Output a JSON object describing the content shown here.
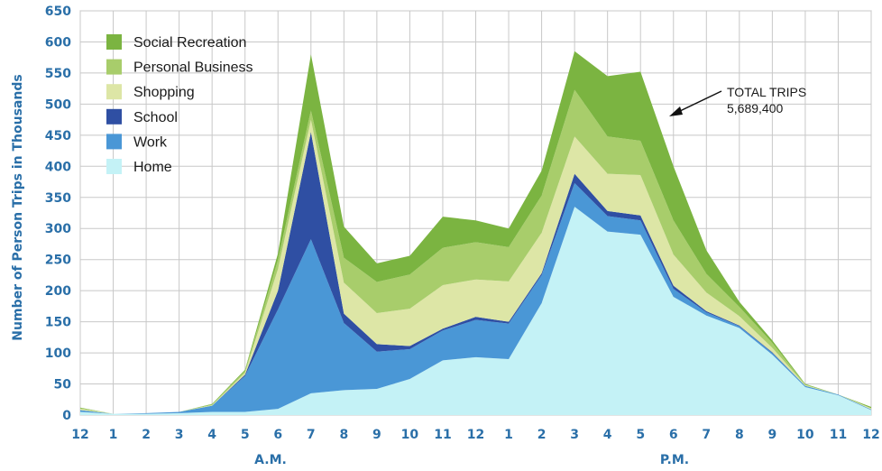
{
  "chart_data": {
    "type": "area",
    "stacked": true,
    "ylabel": "Number of Person Trips in Thousands",
    "ylim": [
      0,
      650
    ],
    "yticks": [
      0,
      50,
      100,
      150,
      200,
      250,
      300,
      350,
      400,
      450,
      500,
      550,
      600,
      650
    ],
    "categories": [
      "12",
      "1",
      "2",
      "3",
      "4",
      "5",
      "6",
      "7",
      "8",
      "9",
      "10",
      "11",
      "12",
      "1",
      "2",
      "3",
      "4",
      "5",
      "6",
      "7",
      "8",
      "9",
      "10",
      "11",
      "12"
    ],
    "period_labels": [
      "A.M.",
      "P.M."
    ],
    "grid": true,
    "legend_position": "top-left",
    "series": [
      {
        "name": "Home",
        "color": "#c4f2f6",
        "values": [
          5,
          2,
          2,
          3,
          5,
          5,
          10,
          35,
          40,
          42,
          58,
          88,
          93,
          90,
          180,
          335,
          295,
          290,
          190,
          160,
          140,
          97,
          45,
          32,
          8
        ]
      },
      {
        "name": "Work",
        "color": "#4a97d6",
        "values": [
          3,
          0,
          1,
          2,
          10,
          58,
          160,
          248,
          108,
          60,
          48,
          48,
          60,
          57,
          45,
          38,
          25,
          23,
          13,
          5,
          3,
          3,
          2,
          1,
          1
        ]
      },
      {
        "name": "School",
        "color": "#2f4fa3",
        "values": [
          0,
          0,
          0,
          0,
          0,
          2,
          30,
          172,
          15,
          12,
          5,
          3,
          5,
          3,
          3,
          15,
          8,
          8,
          5,
          2,
          1,
          1,
          0,
          0,
          0
        ]
      },
      {
        "name": "Shopping",
        "color": "#dde6a6",
        "values": [
          2,
          0,
          0,
          0,
          1,
          3,
          35,
          20,
          50,
          50,
          60,
          70,
          60,
          65,
          65,
          60,
          60,
          65,
          50,
          30,
          15,
          7,
          1,
          0,
          2
        ]
      },
      {
        "name": "Personal Business",
        "color": "#a8cd6b",
        "values": [
          1,
          0,
          0,
          0,
          1,
          3,
          15,
          15,
          40,
          50,
          55,
          60,
          60,
          55,
          60,
          75,
          60,
          55,
          55,
          30,
          15,
          8,
          1,
          0,
          0
        ]
      },
      {
        "name": "Social Recreation",
        "color": "#7bb441",
        "values": [
          1,
          0,
          0,
          0,
          1,
          2,
          10,
          90,
          50,
          30,
          30,
          50,
          35,
          30,
          40,
          62,
          97,
          111,
          87,
          38,
          8,
          4,
          1,
          0,
          2
        ]
      }
    ],
    "annotation": {
      "label": "TOTAL TRIPS",
      "value": "5,689,400"
    }
  }
}
